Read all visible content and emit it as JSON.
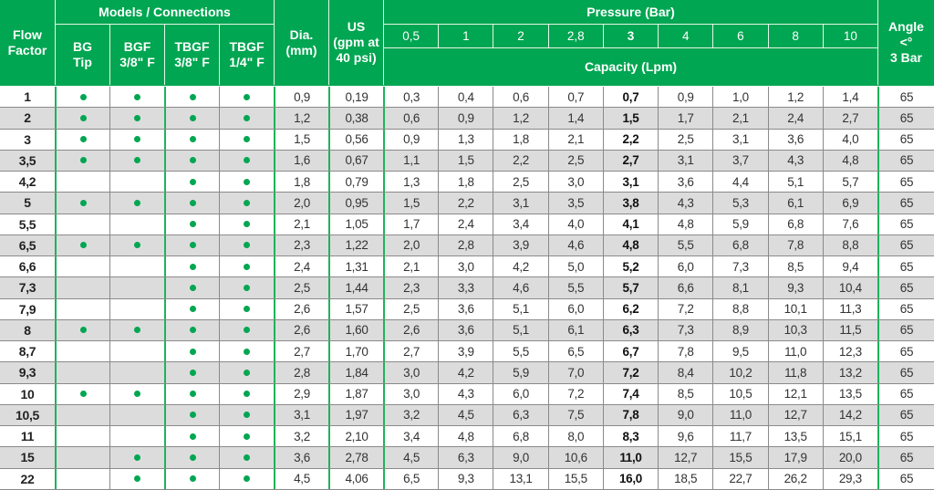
{
  "header": {
    "flow_factor": "Flow\nFactor",
    "models_connections": "Models / Connections",
    "models": [
      "BG\nTip",
      "BGF\n3/8\" F",
      "TBGF\n3/8\" F",
      "TBGF\n1/4\" F"
    ],
    "dia": "Dia.\n(mm)",
    "us": "US\n(gpm at\n40 psi)",
    "pressure": "Pressure (Bar)",
    "pressures": [
      "0,5",
      "1",
      "2",
      "2,8",
      "3",
      "4",
      "6",
      "8",
      "10"
    ],
    "capacity": "Capacity (Lpm)",
    "angle": "Angle\n<°\n3 Bar"
  },
  "colors": {
    "header_green": "#00a651",
    "stripe_gray": "#dcdcdd"
  },
  "rows": [
    {
      "ff": "1",
      "m": [
        true,
        true,
        true,
        true
      ],
      "dia": "0,9",
      "us": "0,19",
      "cap": [
        "0,3",
        "0,4",
        "0,6",
        "0,7",
        "0,7",
        "0,9",
        "1,0",
        "1,2",
        "1,4"
      ],
      "angle": "65"
    },
    {
      "ff": "2",
      "m": [
        true,
        true,
        true,
        true
      ],
      "dia": "1,2",
      "us": "0,38",
      "cap": [
        "0,6",
        "0,9",
        "1,2",
        "1,4",
        "1,5",
        "1,7",
        "2,1",
        "2,4",
        "2,7"
      ],
      "angle": "65"
    },
    {
      "ff": "3",
      "m": [
        true,
        true,
        true,
        true
      ],
      "dia": "1,5",
      "us": "0,56",
      "cap": [
        "0,9",
        "1,3",
        "1,8",
        "2,1",
        "2,2",
        "2,5",
        "3,1",
        "3,6",
        "4,0"
      ],
      "angle": "65"
    },
    {
      "ff": "3,5",
      "m": [
        true,
        true,
        true,
        true
      ],
      "dia": "1,6",
      "us": "0,67",
      "cap": [
        "1,1",
        "1,5",
        "2,2",
        "2,5",
        "2,7",
        "3,1",
        "3,7",
        "4,3",
        "4,8"
      ],
      "angle": "65"
    },
    {
      "ff": "4,2",
      "m": [
        false,
        false,
        true,
        true
      ],
      "dia": "1,8",
      "us": "0,79",
      "cap": [
        "1,3",
        "1,8",
        "2,5",
        "3,0",
        "3,1",
        "3,6",
        "4,4",
        "5,1",
        "5,7"
      ],
      "angle": "65"
    },
    {
      "ff": "5",
      "m": [
        true,
        true,
        true,
        true
      ],
      "dia": "2,0",
      "us": "0,95",
      "cap": [
        "1,5",
        "2,2",
        "3,1",
        "3,5",
        "3,8",
        "4,3",
        "5,3",
        "6,1",
        "6,9"
      ],
      "angle": "65"
    },
    {
      "ff": "5,5",
      "m": [
        false,
        false,
        true,
        true
      ],
      "dia": "2,1",
      "us": "1,05",
      "cap": [
        "1,7",
        "2,4",
        "3,4",
        "4,0",
        "4,1",
        "4,8",
        "5,9",
        "6,8",
        "7,6"
      ],
      "angle": "65"
    },
    {
      "ff": "6,5",
      "m": [
        true,
        true,
        true,
        true
      ],
      "dia": "2,3",
      "us": "1,22",
      "cap": [
        "2,0",
        "2,8",
        "3,9",
        "4,6",
        "4,8",
        "5,5",
        "6,8",
        "7,8",
        "8,8"
      ],
      "angle": "65"
    },
    {
      "ff": "6,6",
      "m": [
        false,
        false,
        true,
        true
      ],
      "dia": "2,4",
      "us": "1,31",
      "cap": [
        "2,1",
        "3,0",
        "4,2",
        "5,0",
        "5,2",
        "6,0",
        "7,3",
        "8,5",
        "9,4"
      ],
      "angle": "65"
    },
    {
      "ff": "7,3",
      "m": [
        false,
        false,
        true,
        true
      ],
      "dia": "2,5",
      "us": "1,44",
      "cap": [
        "2,3",
        "3,3",
        "4,6",
        "5,5",
        "5,7",
        "6,6",
        "8,1",
        "9,3",
        "10,4"
      ],
      "angle": "65"
    },
    {
      "ff": "7,9",
      "m": [
        false,
        false,
        true,
        true
      ],
      "dia": "2,6",
      "us": "1,57",
      "cap": [
        "2,5",
        "3,6",
        "5,1",
        "6,0",
        "6,2",
        "7,2",
        "8,8",
        "10,1",
        "11,3"
      ],
      "angle": "65"
    },
    {
      "ff": "8",
      "m": [
        true,
        true,
        true,
        true
      ],
      "dia": "2,6",
      "us": "1,60",
      "cap": [
        "2,6",
        "3,6",
        "5,1",
        "6,1",
        "6,3",
        "7,3",
        "8,9",
        "10,3",
        "11,5"
      ],
      "angle": "65"
    },
    {
      "ff": "8,7",
      "m": [
        false,
        false,
        true,
        true
      ],
      "dia": "2,7",
      "us": "1,70",
      "cap": [
        "2,7",
        "3,9",
        "5,5",
        "6,5",
        "6,7",
        "7,8",
        "9,5",
        "11,0",
        "12,3"
      ],
      "angle": "65"
    },
    {
      "ff": "9,3",
      "m": [
        false,
        false,
        true,
        true
      ],
      "dia": "2,8",
      "us": "1,84",
      "cap": [
        "3,0",
        "4,2",
        "5,9",
        "7,0",
        "7,2",
        "8,4",
        "10,2",
        "11,8",
        "13,2"
      ],
      "angle": "65"
    },
    {
      "ff": "10",
      "m": [
        true,
        true,
        true,
        true
      ],
      "dia": "2,9",
      "us": "1,87",
      "cap": [
        "3,0",
        "4,3",
        "6,0",
        "7,2",
        "7,4",
        "8,5",
        "10,5",
        "12,1",
        "13,5"
      ],
      "angle": "65"
    },
    {
      "ff": "10,5",
      "m": [
        false,
        false,
        true,
        true
      ],
      "dia": "3,1",
      "us": "1,97",
      "cap": [
        "3,2",
        "4,5",
        "6,3",
        "7,5",
        "7,8",
        "9,0",
        "11,0",
        "12,7",
        "14,2"
      ],
      "angle": "65"
    },
    {
      "ff": "11",
      "m": [
        false,
        false,
        true,
        true
      ],
      "dia": "3,2",
      "us": "2,10",
      "cap": [
        "3,4",
        "4,8",
        "6,8",
        "8,0",
        "8,3",
        "9,6",
        "11,7",
        "13,5",
        "15,1"
      ],
      "angle": "65"
    },
    {
      "ff": "15",
      "m": [
        false,
        true,
        true,
        true
      ],
      "dia": "3,6",
      "us": "2,78",
      "cap": [
        "4,5",
        "6,3",
        "9,0",
        "10,6",
        "11,0",
        "12,7",
        "15,5",
        "17,9",
        "20,0"
      ],
      "angle": "65"
    },
    {
      "ff": "22",
      "m": [
        false,
        true,
        true,
        true
      ],
      "dia": "4,5",
      "us": "4,06",
      "cap": [
        "6,5",
        "9,3",
        "13,1",
        "15,5",
        "16,0",
        "18,5",
        "22,7",
        "26,2",
        "29,3"
      ],
      "angle": "65"
    }
  ]
}
